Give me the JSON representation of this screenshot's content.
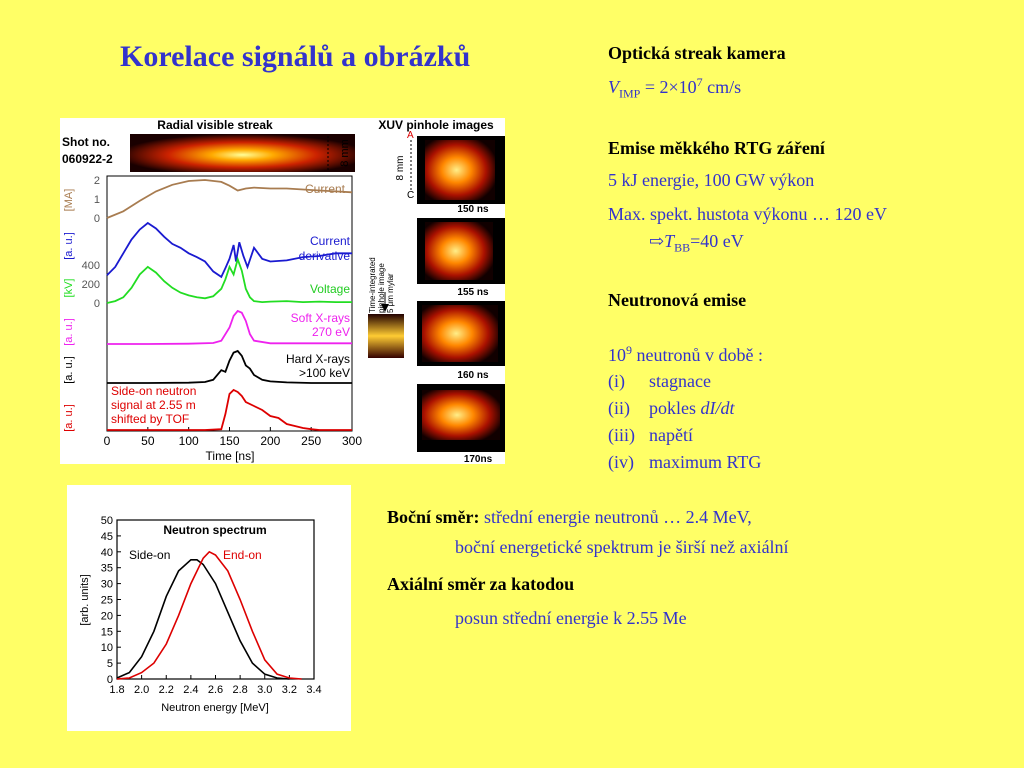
{
  "slide": {
    "title": "Korelace signálů a obrázků"
  },
  "right_text": {
    "streak_heading": "Optická streak kamera",
    "v_sym": "V",
    "v_sub": "IMP",
    "v_eq": " = 2×10",
    "v_exp": "7",
    "v_unit": " cm/s",
    "soft_heading": "Emise měkkého RTG záření",
    "energy_line": "5 kJ energie, 100 GW výkon",
    "max_line": "Max. spekt. hustota výkonu … 120 eV",
    "arrow": "⇨",
    "tbb_sym": "T",
    "tbb_sub": "BB",
    "tbb_val": "=40 eV",
    "neutron_heading": "Neutronová emise",
    "count_base": "10",
    "count_exp": "9",
    "count_text": " neutronů v době :",
    "items": [
      {
        "num": "(i)",
        "text": "stagnace"
      },
      {
        "num": "(ii)",
        "text": "pokles ",
        "italic": "dI/dt"
      },
      {
        "num": "(iii)",
        "text": "napětí"
      },
      {
        "num": "(iv)",
        "text": "maximum RTG"
      }
    ]
  },
  "bottom_text": {
    "side_label": "Boční směr:",
    "side_text": " střední energie neutronů … 2.4 MeV,",
    "side_line2": "boční energetické spektrum je širší než axiální",
    "axial_label": "Axiální směr za katodou",
    "axial_text": "posun střední energie k 2.55 Me"
  },
  "figure_top": {
    "streak_title": "Radial visible streak",
    "xuv_title": "XUV pinhole images",
    "shot_label": "Shot no.",
    "shot_no": "060922-2",
    "scale_8mm": "8 mm",
    "scale_a": "A",
    "scale_c": "C",
    "time_integrated": [
      "Time-integrated",
      "pinhole image",
      "5 μm mylar"
    ],
    "frame_labels": [
      "150 ns",
      "155 ns",
      "160 ns",
      "170ns"
    ],
    "colors": {
      "current": "#a87c50",
      "derivative": "#1a1ad0",
      "voltage": "#22dd22",
      "softx": "#ee22ee",
      "hardx": "#000000",
      "neutron": "#dd0000"
    }
  },
  "chart_data": [
    {
      "type": "line",
      "title": "",
      "xlabel": "Time [ns]",
      "xlim": [
        0,
        300
      ],
      "xticks": [
        "0",
        "50",
        "100",
        "150",
        "200",
        "250",
        "300"
      ],
      "left_axis_labels": [
        {
          "text": "[MA]",
          "color": "#a87c50"
        },
        {
          "text": "[a. u.]",
          "color": "#1a1ad0"
        },
        {
          "text": "[kV]",
          "color": "#22dd22"
        },
        {
          "text": "[a. u.]",
          "color": "#ee22ee"
        },
        {
          "text": "[a. u.]",
          "color": "#000000"
        },
        {
          "text": "[a. u.]",
          "color": "#dd0000"
        }
      ],
      "current_ticks": [
        "2",
        "1",
        "0"
      ],
      "voltage_ticks": [
        "400",
        "200",
        "0"
      ],
      "series": [
        {
          "name": "Current",
          "unit": "MA",
          "x": [
            0,
            20,
            40,
            60,
            80,
            100,
            120,
            140,
            150,
            160,
            170,
            180,
            200,
            220,
            240,
            260,
            280,
            300
          ],
          "y": [
            0.0,
            0.35,
            0.9,
            1.4,
            1.75,
            1.95,
            2.0,
            1.9,
            1.7,
            1.45,
            1.55,
            1.6,
            1.55,
            1.55,
            1.5,
            1.45,
            1.4,
            1.35
          ]
        },
        {
          "name": "Current derivative",
          "unit": "a.u.",
          "x": [
            0,
            10,
            20,
            30,
            40,
            50,
            60,
            70,
            80,
            90,
            100,
            110,
            120,
            130,
            140,
            145,
            150,
            155,
            158,
            162,
            167,
            172,
            180,
            190,
            200,
            220,
            240,
            260,
            280,
            300
          ],
          "y": [
            0.05,
            0.2,
            0.45,
            0.7,
            0.88,
            1.0,
            0.9,
            0.75,
            0.62,
            0.55,
            0.45,
            0.38,
            0.3,
            0.12,
            0.02,
            0.18,
            0.35,
            0.6,
            0.3,
            0.65,
            0.4,
            0.2,
            0.55,
            0.35,
            0.3,
            0.32,
            0.38,
            0.4,
            0.45,
            0.45
          ]
        },
        {
          "name": "Voltage",
          "unit": "kV",
          "x": [
            0,
            10,
            20,
            30,
            40,
            50,
            60,
            70,
            80,
            90,
            100,
            110,
            120,
            130,
            140,
            145,
            150,
            155,
            160,
            165,
            170,
            175,
            180,
            190,
            200,
            220,
            240,
            260,
            280,
            300
          ],
          "y": [
            0,
            20,
            60,
            160,
            300,
            380,
            320,
            230,
            160,
            110,
            80,
            60,
            50,
            70,
            150,
            250,
            380,
            300,
            460,
            340,
            150,
            60,
            20,
            10,
            15,
            20,
            10,
            15,
            10,
            10
          ]
        },
        {
          "name": "Soft X-rays 270 eV",
          "unit": "a.u.",
          "x": [
            0,
            50,
            100,
            130,
            140,
            150,
            155,
            160,
            165,
            170,
            175,
            180,
            200,
            250,
            300
          ],
          "y": [
            0,
            0,
            0.01,
            0.03,
            0.1,
            0.5,
            0.85,
            1.0,
            0.95,
            0.7,
            0.3,
            0.1,
            0.02,
            0.02,
            0.02
          ]
        },
        {
          "name": "Hard X-rays >100 keV",
          "unit": "a.u.",
          "x": [
            0,
            50,
            100,
            120,
            130,
            140,
            145,
            150,
            155,
            160,
            165,
            170,
            175,
            180,
            190,
            200,
            220,
            250,
            300
          ],
          "y": [
            0,
            0,
            0.01,
            0.03,
            0.1,
            0.4,
            0.35,
            0.7,
            0.95,
            1.0,
            0.85,
            0.55,
            0.45,
            0.25,
            0.1,
            0.05,
            0.02,
            0.0,
            0.0
          ]
        },
        {
          "name": "Side-on neutron signal at 2.55 m shifted by TOF",
          "unit": "a.u.",
          "x": [
            0,
            120,
            140,
            145,
            150,
            155,
            160,
            165,
            170,
            180,
            190,
            200,
            210,
            220,
            230,
            240,
            250,
            260,
            300
          ],
          "y": [
            0,
            0,
            0.02,
            0.4,
            0.9,
            1.0,
            0.95,
            0.85,
            0.7,
            0.6,
            0.5,
            0.35,
            0.3,
            0.15,
            0.1,
            0.05,
            0.02,
            0,
            0
          ]
        }
      ]
    },
    {
      "type": "line",
      "title": "Neutron spectrum",
      "xlabel": "Neutron energy [MeV]",
      "ylabel": "[arb. units]",
      "xlim": [
        1.8,
        3.4
      ],
      "ylim": [
        0,
        50
      ],
      "xticks": [
        "1.8",
        "2.0",
        "2.2",
        "2.4",
        "2.6",
        "2.8",
        "3.0",
        "3.2",
        "3.4"
      ],
      "yticks": [
        "0",
        "5",
        "10",
        "15",
        "20",
        "25",
        "30",
        "35",
        "40",
        "45",
        "50"
      ],
      "series": [
        {
          "name": "Side-on",
          "color": "#000000",
          "x": [
            1.8,
            1.9,
            2.0,
            2.1,
            2.2,
            2.3,
            2.4,
            2.45,
            2.5,
            2.6,
            2.7,
            2.8,
            2.9,
            3.0,
            3.1,
            3.2
          ],
          "y": [
            0.3,
            2,
            7,
            15,
            26,
            34,
            37.5,
            37.5,
            36,
            30,
            21,
            12,
            5,
            1.5,
            0.3,
            0
          ]
        },
        {
          "name": "End-on",
          "color": "#dd0000",
          "x": [
            1.8,
            1.9,
            2.0,
            2.1,
            2.2,
            2.3,
            2.4,
            2.5,
            2.55,
            2.6,
            2.7,
            2.8,
            2.9,
            3.0,
            3.1,
            3.2,
            3.3
          ],
          "y": [
            0,
            0.3,
            2,
            5,
            11,
            20,
            30,
            38,
            40,
            39,
            34,
            25,
            15,
            6,
            1.5,
            0.3,
            0
          ]
        }
      ]
    }
  ]
}
